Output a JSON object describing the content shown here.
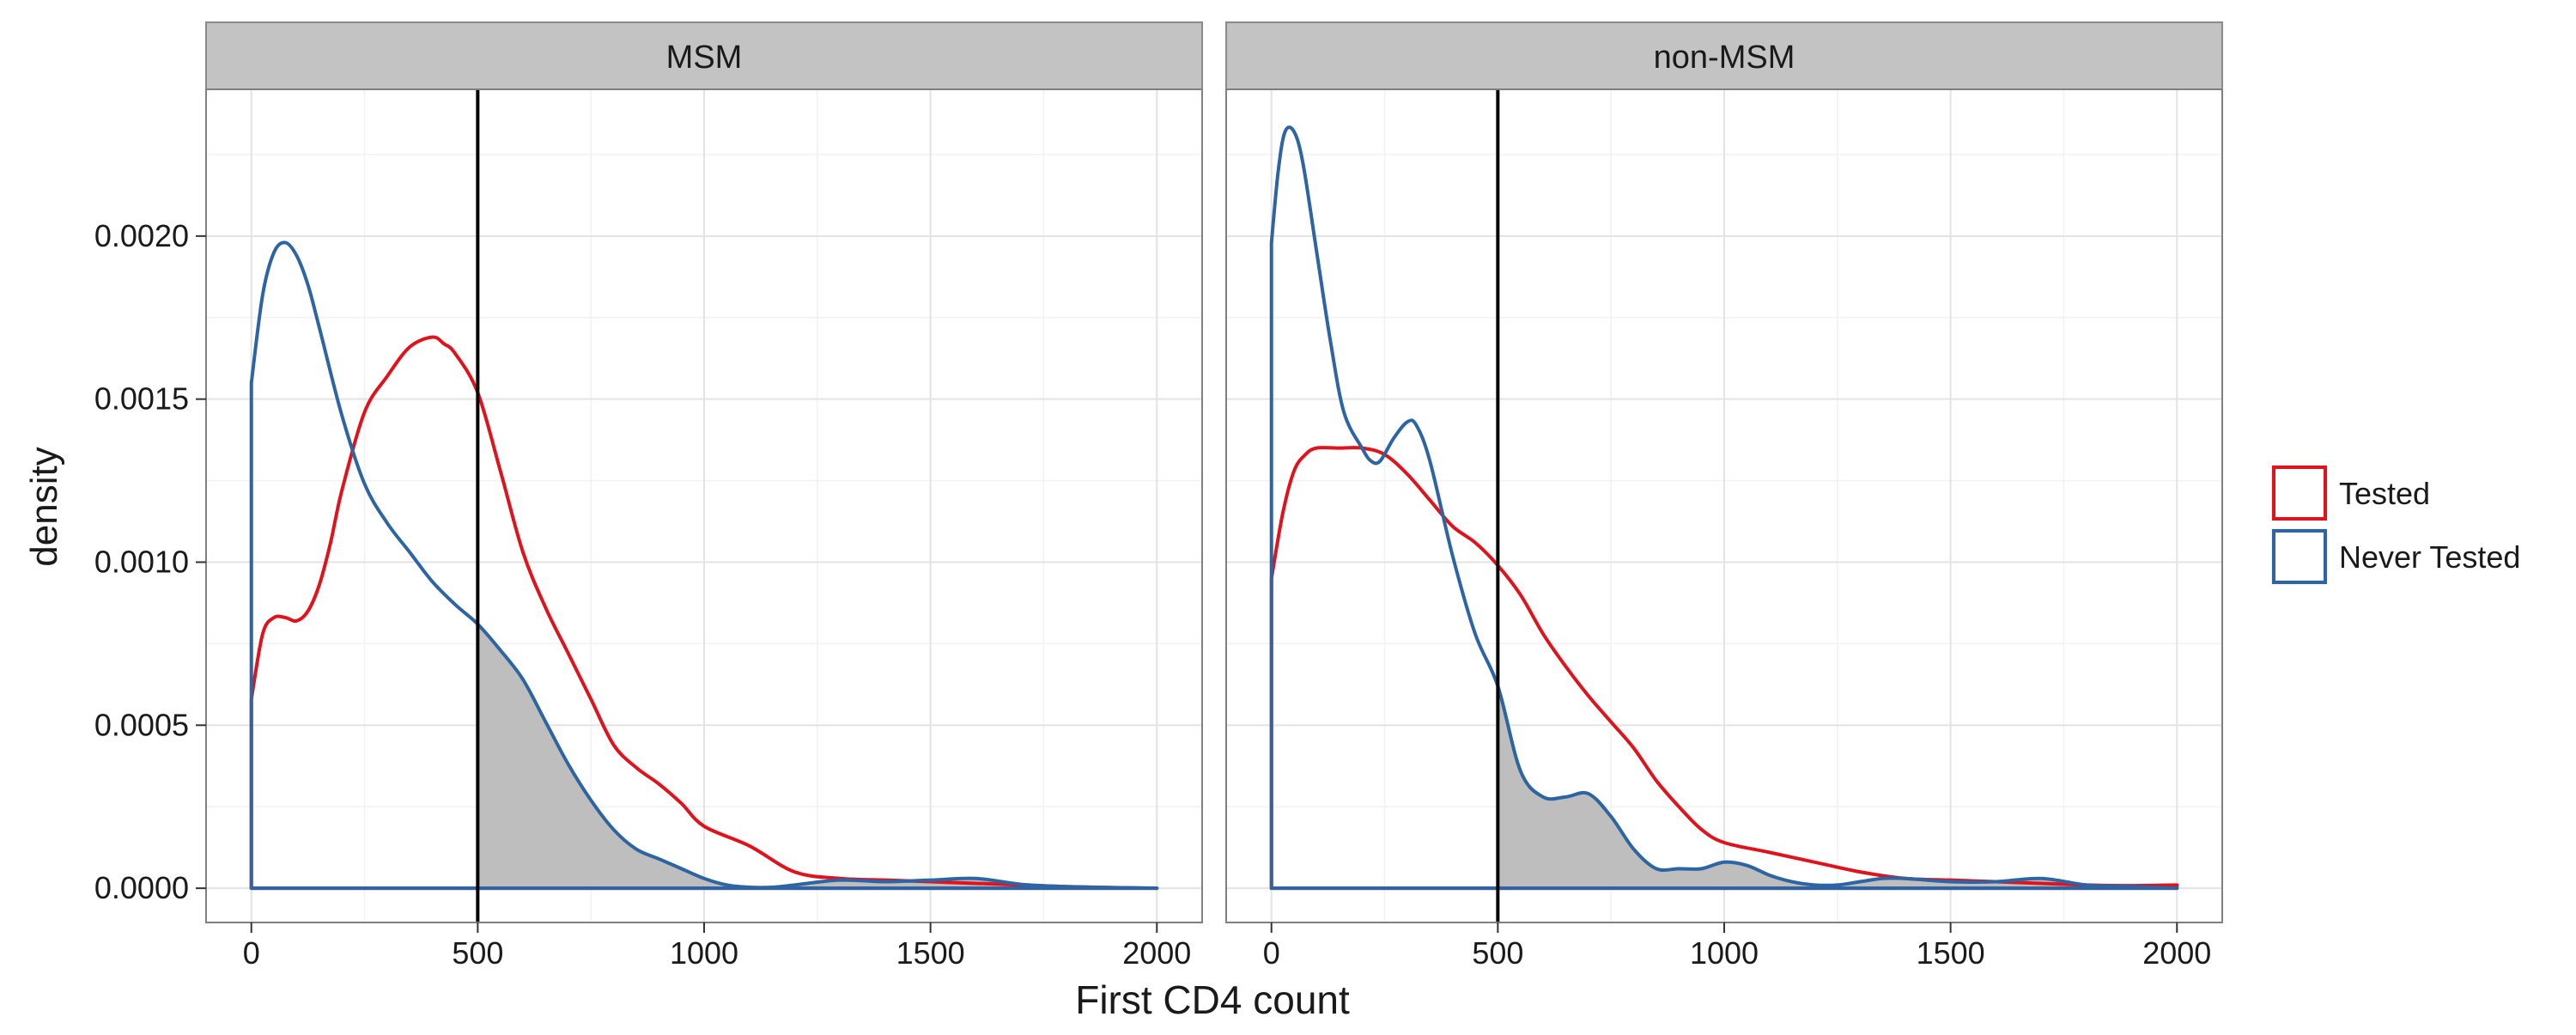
{
  "chart_data": {
    "type": "area",
    "title": "",
    "xlabel": "First CD4 count",
    "ylabel": "density",
    "xlim": [
      -100,
      2100
    ],
    "ylim": [
      -0.000105,
      0.00245
    ],
    "x_ticks": [
      0,
      500,
      1000,
      1500,
      2000
    ],
    "y_ticks": [
      0,
      0.0005,
      0.001,
      0.0015,
      0.002
    ],
    "y_tick_labels": [
      "0.0000",
      "0.0005",
      "0.0010",
      "0.0015",
      "0.0020"
    ],
    "x_tick_labels": [
      "0",
      "500",
      "1000",
      "1500",
      "2000"
    ],
    "grid": true,
    "legend_position": "right",
    "reference_line_x": 500,
    "shaded_series": "Never Tested",
    "shaded_region": "x >= 500",
    "legend": [
      {
        "label": "Tested",
        "color": "#e0131c"
      },
      {
        "label": "Never Tested",
        "color": "#2c64a4"
      }
    ],
    "panels": [
      {
        "label": "MSM",
        "series": [
          {
            "name": "Tested",
            "color": "#e0131c",
            "x": [
              0,
              25,
              50,
              75,
              100,
              125,
              150,
              175,
              200,
              250,
              300,
              350,
              400,
              425,
              450,
              500,
              550,
              600,
              650,
              700,
              750,
              800,
              850,
              900,
              950,
              1000,
              1100,
              1200,
              1300,
              1400,
              1500,
              1600,
              1700,
              1800,
              1900,
              2000
            ],
            "y": [
              0.00058,
              0.00078,
              0.00083,
              0.00083,
              0.00082,
              0.00085,
              0.00093,
              0.00106,
              0.00122,
              0.00146,
              0.00157,
              0.00166,
              0.00169,
              0.00167,
              0.00164,
              0.00152,
              0.00128,
              0.00103,
              0.00086,
              0.00072,
              0.00058,
              0.00044,
              0.00037,
              0.00032,
              0.00026,
              0.00019,
              0.00013,
              5e-05,
              3e-05,
              2.5e-05,
              2e-05,
              1.5e-05,
              1e-05,
              5e-06,
              2e-06,
              0.0
            ]
          },
          {
            "name": "Never Tested",
            "color": "#2c64a4",
            "x": [
              0,
              25,
              50,
              75,
              100,
              125,
              150,
              200,
              250,
              300,
              350,
              400,
              450,
              500,
              550,
              600,
              650,
              700,
              750,
              800,
              850,
              900,
              950,
              1000,
              1050,
              1100,
              1150,
              1200,
              1300,
              1400,
              1500,
              1600,
              1700,
              1800,
              1900,
              2000
            ],
            "y": [
              0.00155,
              0.00182,
              0.00195,
              0.00198,
              0.00194,
              0.00185,
              0.00172,
              0.00145,
              0.00124,
              0.00112,
              0.00103,
              0.00094,
              0.00087,
              0.00081,
              0.00073,
              0.00064,
              0.00051,
              0.00038,
              0.00027,
              0.00018,
              0.00012,
              9e-05,
              6e-05,
              3e-05,
              1e-05,
              3e-06,
              3e-06,
              1e-05,
              2.5e-05,
              2e-05,
              2.5e-05,
              3e-05,
              1.2e-05,
              5e-06,
              2e-06,
              0.0
            ]
          }
        ]
      },
      {
        "label": "non-MSM",
        "series": [
          {
            "name": "Tested",
            "color": "#e0131c",
            "x": [
              0,
              25,
              50,
              75,
              100,
              150,
              200,
              250,
              300,
              350,
              400,
              450,
              500,
              550,
              600,
              650,
              700,
              750,
              800,
              850,
              900,
              950,
              1000,
              1100,
              1200,
              1300,
              1400,
              1500,
              1600,
              1700,
              1800,
              1900,
              2000
            ],
            "y": [
              0.00095,
              0.00115,
              0.00128,
              0.00133,
              0.00135,
              0.00135,
              0.00135,
              0.00133,
              0.00127,
              0.00119,
              0.00111,
              0.00106,
              0.00099,
              0.0009,
              0.00078,
              0.00068,
              0.00059,
              0.00051,
              0.00043,
              0.00033,
              0.00025,
              0.00018,
              0.00014,
              0.00011,
              8e-05,
              5e-05,
              3e-05,
              2.5e-05,
              2e-05,
              1.5e-05,
              1e-05,
              8e-06,
              1e-05
            ]
          },
          {
            "name": "Never Tested",
            "color": "#2c64a4",
            "x": [
              0,
              15,
              30,
              50,
              70,
              100,
              130,
              160,
              200,
              220,
              240,
              270,
              300,
              320,
              350,
              400,
              450,
              500,
              550,
              600,
              650,
              700,
              750,
              800,
              850,
              900,
              950,
              1000,
              1050,
              1100,
              1150,
              1200,
              1250,
              1300,
              1350,
              1400,
              1500,
              1600,
              1700,
              1800,
              1900,
              2000
            ],
            "y": [
              0.00198,
              0.0022,
              0.00232,
              0.00232,
              0.00222,
              0.00195,
              0.00168,
              0.00146,
              0.00135,
              0.00131,
              0.00131,
              0.00138,
              0.00143,
              0.00142,
              0.00131,
              0.00102,
              0.00078,
              0.00062,
              0.00036,
              0.00028,
              0.00028,
              0.00029,
              0.00022,
              0.00012,
              6e-05,
              6e-05,
              6e-05,
              8e-05,
              7e-05,
              4e-05,
              2e-05,
              1e-05,
              1e-05,
              2e-05,
              3e-05,
              3e-05,
              2e-05,
              2e-05,
              3e-05,
              1e-05,
              5e-06,
              0.0
            ]
          }
        ]
      }
    ]
  }
}
